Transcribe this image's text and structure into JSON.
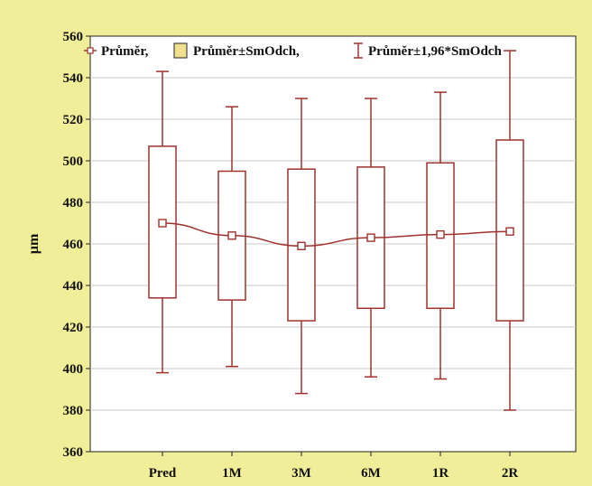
{
  "chart_data": {
    "type": "box",
    "categories": [
      "Pred",
      "1M",
      "3M",
      "6M",
      "1R",
      "2R"
    ],
    "mean": [
      470,
      464,
      459,
      463,
      464.5,
      466
    ],
    "mean_plus_sd": [
      507,
      495,
      496,
      497,
      499,
      510
    ],
    "mean_minus_sd": [
      434,
      433,
      423,
      429,
      429,
      423
    ],
    "mean_plus_196sd": [
      543,
      526,
      530,
      530,
      533,
      553
    ],
    "mean_minus_196sd": [
      398,
      401,
      388,
      396,
      395,
      380
    ],
    "ylabel": "µm",
    "ylim": [
      360,
      560
    ],
    "yticks": [
      "360",
      "380",
      "400",
      "420",
      "440",
      "460",
      "480",
      "500",
      "520",
      "540",
      "560"
    ],
    "grid": true,
    "legend_position": "top",
    "legend": [
      {
        "label": "Průměr,",
        "marker": "mean"
      },
      {
        "label": "Průměr±SmOdch,",
        "marker": "box"
      },
      {
        "label": "Průměr±1,96*SmOdch",
        "marker": "whisker"
      }
    ],
    "colors": {
      "series": "#a0322d",
      "box_fill": "#ffffff",
      "legend_box_fill": "#f0e090",
      "grid": "#c8c8c8",
      "plot_bg": "#ffffff",
      "page_bg": "#f0ee98"
    }
  }
}
